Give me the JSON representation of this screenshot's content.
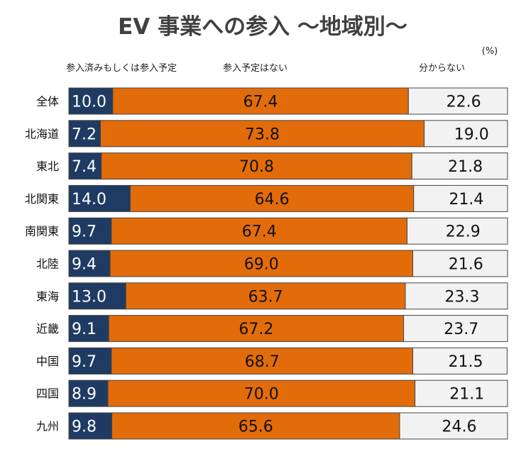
{
  "chart_data": {
    "type": "bar",
    "orientation": "horizontal",
    "stacked": true,
    "title": "EV 事業への参入 ～地域別～",
    "unit": "(%)",
    "categories": [
      "全体",
      "北海道",
      "東北",
      "北関東",
      "南関東",
      "北陸",
      "東海",
      "近畿",
      "中国",
      "四国",
      "九州"
    ],
    "series": [
      {
        "name": "参入済みもしくは参入予定",
        "color": "#1f3b63",
        "label_color": "#ffffff",
        "values": [
          10.0,
          7.2,
          7.4,
          14.0,
          9.7,
          9.4,
          13.0,
          9.1,
          9.7,
          8.9,
          9.8
        ]
      },
      {
        "name": "参入予定はない",
        "color": "#e36c0a",
        "label_color": "#111111",
        "values": [
          67.4,
          73.8,
          70.8,
          64.6,
          67.4,
          69.0,
          63.7,
          67.2,
          68.7,
          70.0,
          65.6
        ]
      },
      {
        "name": "分からない",
        "color": "#f2f2f2",
        "label_color": "#111111",
        "values": [
          22.6,
          19.0,
          21.8,
          21.4,
          22.9,
          21.6,
          23.3,
          23.7,
          21.5,
          21.1,
          24.6
        ]
      }
    ],
    "xlim": [
      0,
      100
    ],
    "xlabel": "",
    "ylabel": "",
    "grid": false,
    "legend": "top"
  }
}
